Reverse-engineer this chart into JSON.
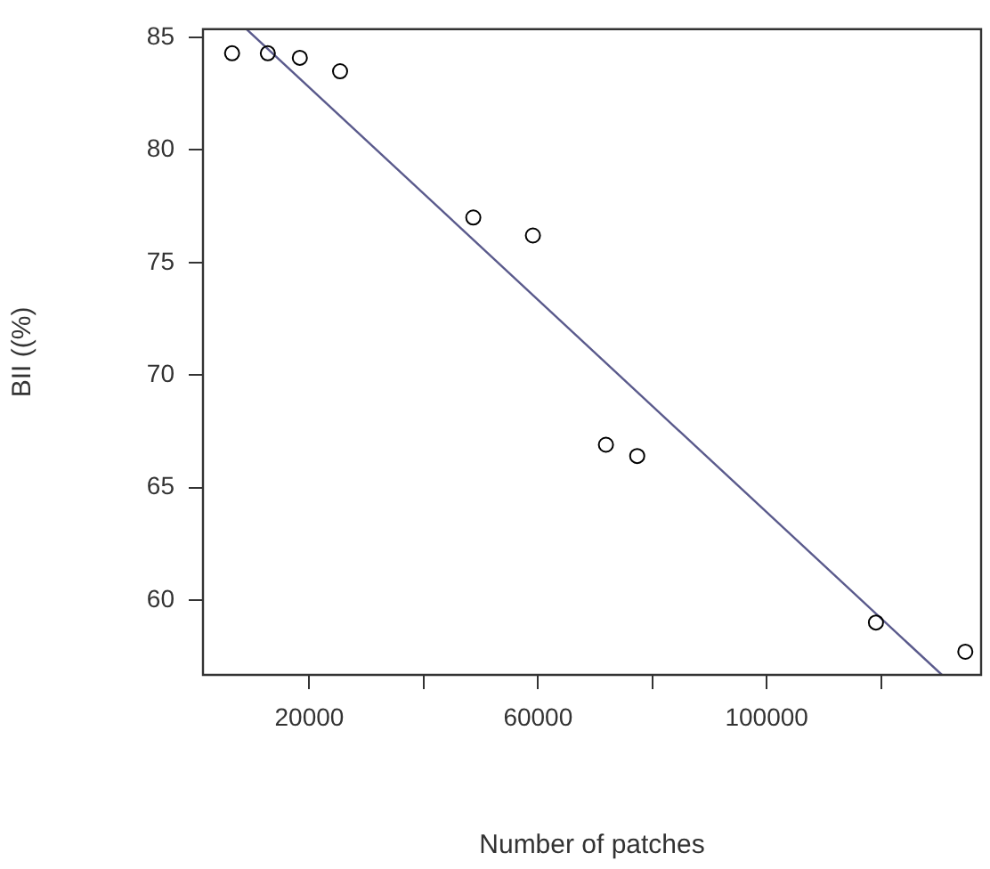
{
  "chart_data": {
    "type": "scatter",
    "xlabel": "Number of patches",
    "ylabel": "BII ((%)",
    "xlim": [
      1400,
      137500
    ],
    "ylim": [
      56.67,
      85.37
    ],
    "xticks": [
      20000,
      {
        "value": 40000,
        "label": null
      },
      60000,
      {
        "value": 80000,
        "label": null
      },
      100000,
      {
        "value": 120000,
        "label": null
      }
    ],
    "yticks": [
      60,
      65,
      70,
      75,
      80,
      85
    ],
    "grid": false,
    "legend": false,
    "marker": "circle",
    "series": [
      {
        "color": "#000000",
        "x": [
          6490,
          12740,
          18340,
          25380,
          48680,
          59110,
          71880,
          77350,
          119110,
          134740
        ],
        "values": [
          84.3,
          84.3,
          84.1,
          83.5,
          77.0,
          76.2,
          66.9,
          66.4,
          59.0,
          57.7
        ]
      },
      {
        "type": "line",
        "color": "#5a5a8c",
        "marker": "none",
        "x": [
          9020,
          130650
        ],
        "values": [
          85.37,
          56.67
        ]
      }
    ]
  }
}
